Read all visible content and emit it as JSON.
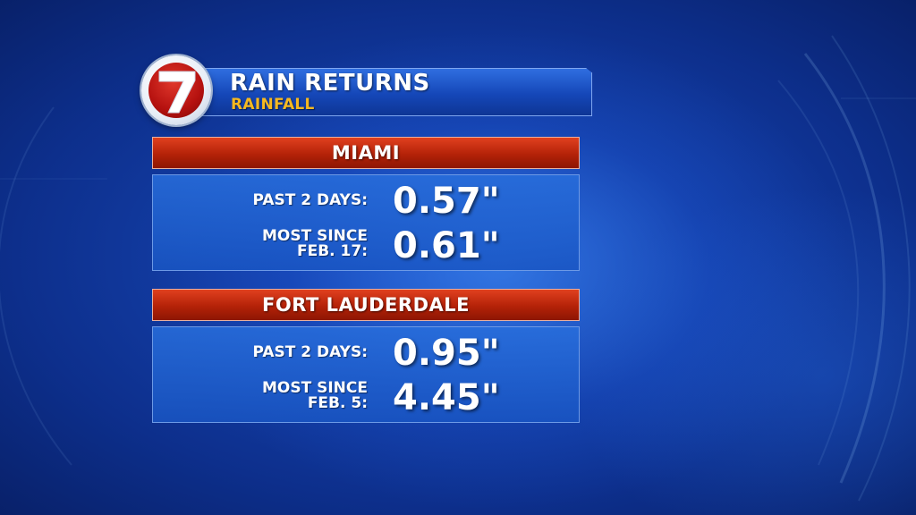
{
  "graphic": {
    "title": "RAIN RETURNS",
    "subtitle": "RAINFALL",
    "logo_text": "7"
  },
  "colors": {
    "header_red": "#b42208",
    "title_blue": "#1547b8",
    "subtitle_gold": "#f5b820",
    "panel_blue": "#1f5fc8"
  },
  "locations": [
    {
      "name": "MIAMI",
      "rows": [
        {
          "label_lines": [
            "PAST 2 DAYS:"
          ],
          "value": "0.57\""
        },
        {
          "label_lines": [
            "MOST SINCE",
            "FEB. 17:"
          ],
          "value": "0.61\""
        }
      ]
    },
    {
      "name": "FORT LAUDERDALE",
      "rows": [
        {
          "label_lines": [
            "PAST 2 DAYS:"
          ],
          "value": "0.95\""
        },
        {
          "label_lines": [
            "MOST SINCE",
            "FEB. 5:"
          ],
          "value": "4.45\""
        }
      ]
    }
  ]
}
